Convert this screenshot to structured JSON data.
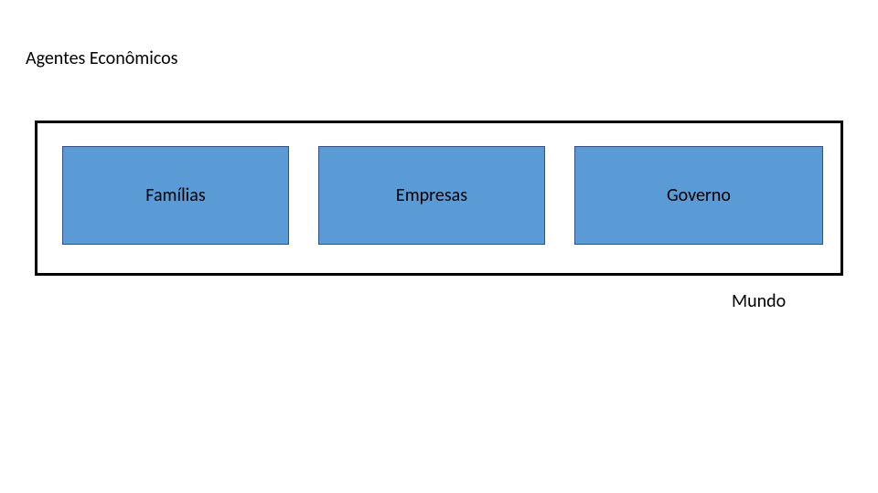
{
  "diagram": {
    "type": "infographic",
    "title": "Agentes Econômicos",
    "title_fontsize": 20,
    "title_color": "#000000",
    "background_color": "#ffffff",
    "outer_box": {
      "border_color": "#000000",
      "border_width": 3,
      "fill": "#ffffff"
    },
    "boxes": [
      {
        "label": "Famílias",
        "fill_color": "#5b9bd5",
        "border_color": "#2f528f",
        "text_color": "#000000",
        "fontsize": 20
      },
      {
        "label": "Empresas",
        "fill_color": "#5b9bd5",
        "border_color": "#2f528f",
        "text_color": "#000000",
        "fontsize": 20
      },
      {
        "label": "Governo",
        "fill_color": "#5b9bd5",
        "border_color": "#2f528f",
        "text_color": "#000000",
        "fontsize": 20
      }
    ],
    "outside_label": {
      "text": "Mundo",
      "fontsize": 20,
      "color": "#000000"
    }
  }
}
